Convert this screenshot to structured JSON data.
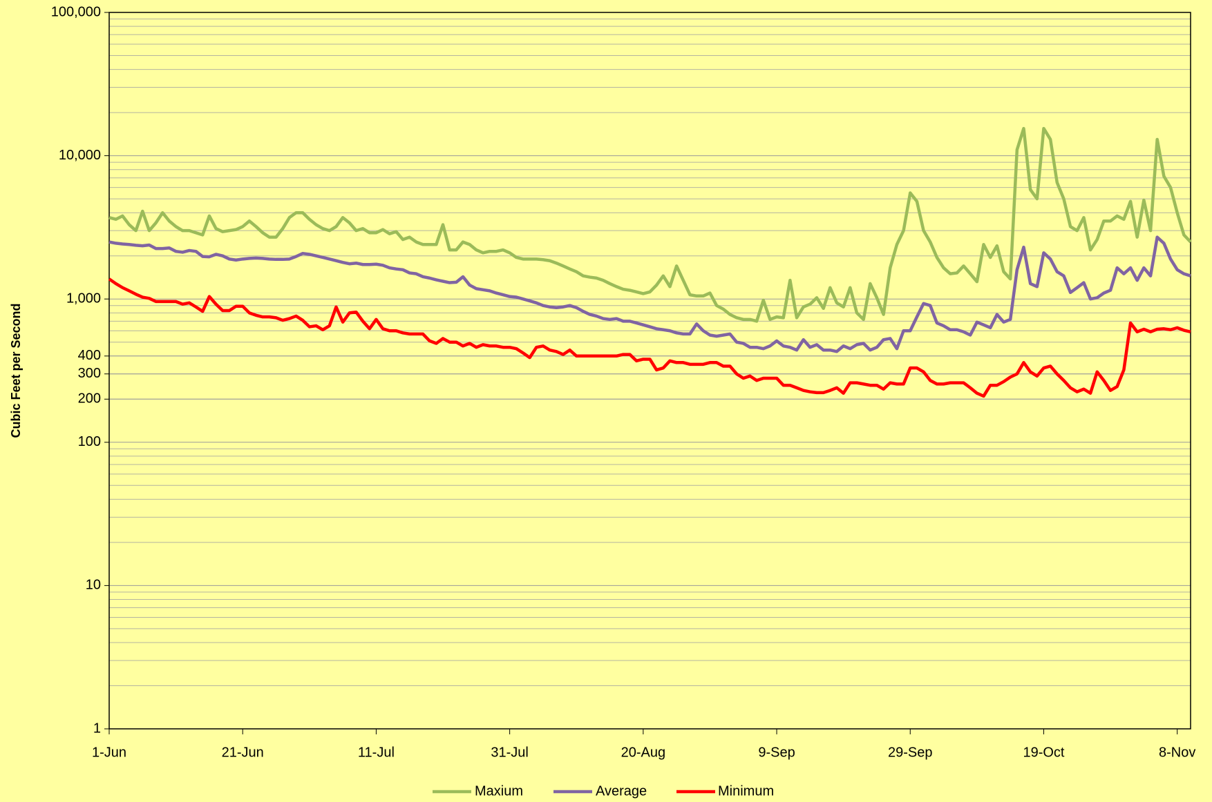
{
  "chart_data": {
    "type": "line",
    "y_label": "Cubic Feet per Second",
    "categories": [
      "1-Jun",
      null,
      null,
      null,
      null,
      null,
      null,
      null,
      null,
      null,
      null,
      null,
      null,
      null,
      null,
      null,
      null,
      null,
      null,
      null,
      "21-Jun",
      null,
      null,
      null,
      null,
      null,
      null,
      null,
      null,
      null,
      null,
      null,
      null,
      null,
      null,
      null,
      null,
      null,
      null,
      null,
      "11-Jul",
      null,
      null,
      null,
      null,
      null,
      null,
      null,
      null,
      null,
      null,
      null,
      null,
      null,
      null,
      null,
      null,
      null,
      null,
      null,
      "31-Jul",
      null,
      null,
      null,
      null,
      null,
      null,
      null,
      null,
      null,
      null,
      null,
      null,
      null,
      null,
      null,
      null,
      null,
      null,
      null,
      "20-Aug",
      null,
      null,
      null,
      null,
      null,
      null,
      null,
      null,
      null,
      null,
      null,
      null,
      null,
      null,
      null,
      null,
      null,
      null,
      null,
      "9-Sep",
      null,
      null,
      null,
      null,
      null,
      null,
      null,
      null,
      null,
      null,
      null,
      null,
      null,
      null,
      null,
      null,
      null,
      null,
      null,
      "29-Sep",
      null,
      null,
      null,
      null,
      null,
      null,
      null,
      null,
      null,
      null,
      null,
      null,
      null,
      null,
      null,
      null,
      null,
      null,
      null,
      "19-Oct",
      null,
      null,
      null,
      null,
      null,
      null,
      null,
      null,
      null,
      null,
      null,
      null,
      null,
      null,
      null,
      null,
      null,
      null,
      null,
      "8-Nov",
      null,
      null
    ],
    "series": [
      {
        "name": "Maxium",
        "color": "#9bbb59",
        "values": [
          3700,
          3600,
          3800,
          3300,
          3000,
          4100,
          3000,
          3400,
          4000,
          3500,
          3200,
          3000,
          3000,
          2900,
          2800,
          3800,
          3100,
          2950,
          3000,
          3050,
          3200,
          3500,
          3200,
          2900,
          2700,
          2700,
          3100,
          3700,
          4000,
          4000,
          3600,
          3300,
          3100,
          3000,
          3200,
          3700,
          3400,
          3000,
          3100,
          2900,
          2900,
          3050,
          2850,
          2950,
          2600,
          2700,
          2500,
          2400,
          2400,
          2400,
          3300,
          2200,
          2200,
          2500,
          2400,
          2200,
          2100,
          2150,
          2150,
          2200,
          2100,
          1950,
          1900,
          1900,
          1900,
          1880,
          1850,
          1780,
          1700,
          1620,
          1550,
          1450,
          1420,
          1400,
          1350,
          1280,
          1220,
          1170,
          1150,
          1120,
          1090,
          1120,
          1250,
          1450,
          1220,
          1700,
          1350,
          1070,
          1050,
          1050,
          1100,
          900,
          850,
          780,
          740,
          720,
          720,
          700,
          980,
          720,
          750,
          740,
          1350,
          740,
          880,
          920,
          1020,
          860,
          1200,
          940,
          880,
          1200,
          800,
          720,
          1280,
          1020,
          780,
          1650,
          2400,
          3000,
          5500,
          4800,
          3000,
          2500,
          1950,
          1650,
          1500,
          1520,
          1700,
          1500,
          1320,
          2400,
          1950,
          2350,
          1550,
          1380,
          11000,
          15500,
          5800,
          5000,
          15500,
          13000,
          6500,
          5000,
          3200,
          3000,
          3700,
          2200,
          2600,
          3500,
          3500,
          3800,
          3600,
          4800,
          2700,
          4900,
          3000,
          13000,
          7200,
          6000,
          4000,
          2800,
          2500
        ]
      },
      {
        "name": "Average",
        "color": "#8064a2",
        "values": [
          2500,
          2450,
          2420,
          2400,
          2370,
          2350,
          2380,
          2250,
          2250,
          2270,
          2150,
          2120,
          2180,
          2150,
          1980,
          1970,
          2050,
          2000,
          1900,
          1870,
          1900,
          1920,
          1930,
          1920,
          1900,
          1890,
          1890,
          1900,
          1980,
          2080,
          2050,
          2000,
          1950,
          1900,
          1850,
          1800,
          1760,
          1780,
          1740,
          1740,
          1750,
          1720,
          1650,
          1620,
          1600,
          1520,
          1500,
          1430,
          1400,
          1360,
          1330,
          1300,
          1310,
          1430,
          1250,
          1180,
          1160,
          1140,
          1100,
          1070,
          1040,
          1030,
          1000,
          970,
          940,
          900,
          880,
          870,
          880,
          900,
          870,
          820,
          780,
          760,
          730,
          720,
          730,
          700,
          700,
          680,
          660,
          640,
          620,
          610,
          600,
          580,
          570,
          570,
          670,
          600,
          560,
          550,
          560,
          570,
          500,
          490,
          460,
          460,
          450,
          470,
          510,
          470,
          460,
          440,
          520,
          460,
          480,
          440,
          440,
          430,
          470,
          450,
          480,
          490,
          440,
          460,
          520,
          530,
          450,
          600,
          600,
          750,
          930,
          900,
          680,
          650,
          610,
          610,
          590,
          560,
          690,
          660,
          630,
          780,
          690,
          720,
          1600,
          2300,
          1280,
          1220,
          2100,
          1900,
          1550,
          1450,
          1110,
          1200,
          1300,
          1000,
          1020,
          1100,
          1150,
          1650,
          1500,
          1650,
          1350,
          1650,
          1450,
          2700,
          2450,
          1900,
          1600,
          1500,
          1450
        ]
      },
      {
        "name": "Minimum",
        "color": "#ff0000",
        "values": [
          1380,
          1280,
          1200,
          1140,
          1080,
          1030,
          1010,
          960,
          960,
          960,
          960,
          920,
          940,
          880,
          820,
          1040,
          920,
          830,
          830,
          890,
          890,
          800,
          770,
          750,
          750,
          740,
          710,
          730,
          760,
          710,
          640,
          650,
          610,
          650,
          880,
          690,
          800,
          810,
          700,
          620,
          720,
          620,
          600,
          600,
          580,
          570,
          570,
          570,
          510,
          490,
          530,
          500,
          500,
          470,
          490,
          460,
          480,
          470,
          470,
          460,
          460,
          450,
          420,
          390,
          460,
          470,
          440,
          430,
          410,
          440,
          400,
          400,
          400,
          400,
          400,
          400,
          400,
          410,
          410,
          370,
          380,
          380,
          320,
          330,
          370,
          360,
          360,
          350,
          350,
          350,
          360,
          360,
          340,
          340,
          300,
          280,
          290,
          270,
          280,
          280,
          280,
          250,
          250,
          240,
          230,
          225,
          222,
          222,
          230,
          240,
          220,
          260,
          260,
          255,
          250,
          250,
          235,
          260,
          255,
          255,
          330,
          330,
          310,
          270,
          255,
          255,
          260,
          260,
          260,
          240,
          220,
          210,
          250,
          250,
          265,
          285,
          300,
          360,
          310,
          290,
          330,
          340,
          300,
          270,
          240,
          225,
          235,
          220,
          310,
          270,
          230,
          245,
          320,
          680,
          590,
          615,
          590,
          615,
          620,
          610,
          630,
          605,
          590
        ]
      }
    ],
    "log_y": true,
    "ylim": [
      1,
      100000
    ],
    "yticks": [
      1,
      10,
      100,
      200,
      300,
      400,
      {
        "value": 1000,
        "label": "1,000"
      },
      {
        "value": 10000,
        "label": "10,000"
      },
      {
        "value": 100000,
        "label": "100,000"
      }
    ],
    "grid": true,
    "minor_grid": true,
    "legend": "bottom",
    "background": "#ffffa0"
  }
}
